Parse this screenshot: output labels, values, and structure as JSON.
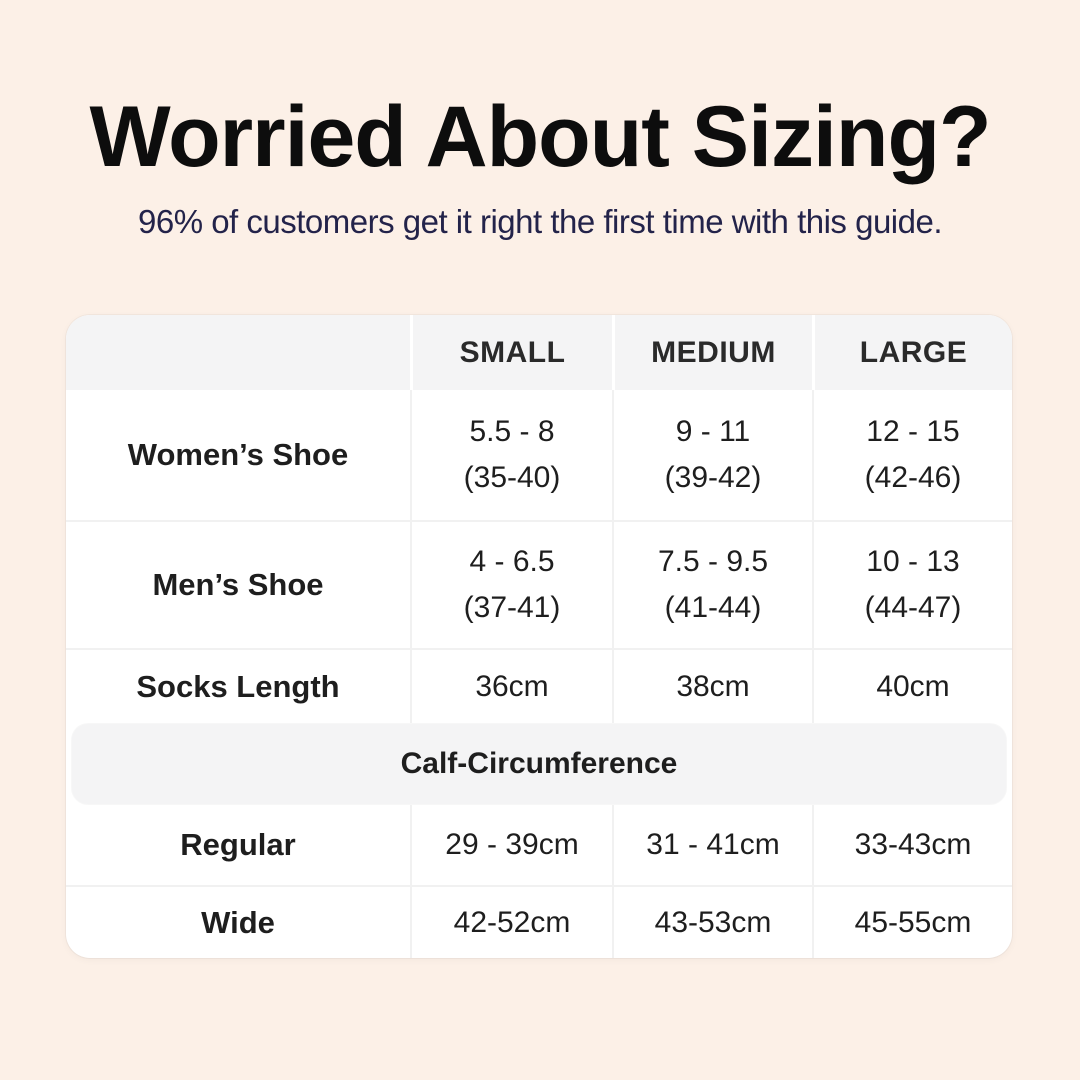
{
  "page": {
    "title": "Worried About Sizing?",
    "subtitle": "96% of customers get it right the first time with this guide."
  },
  "colors": {
    "page_background": "#FCF0E7",
    "card_background": "#FFFFFF",
    "band_background": "#F4F4F5",
    "divider": "#F1F1F1",
    "title_text": "#0D0D0D",
    "subtitle_text": "#23234A",
    "table_text": "#1E1E1E"
  },
  "table": {
    "header": {
      "col0": "",
      "col1": "SMALL",
      "col2": "MEDIUM",
      "col3": "LARGE"
    },
    "rows": [
      {
        "label": "Women’s Shoe",
        "cells": [
          [
            "5.5 - 8",
            "(35-40)"
          ],
          [
            "9 - 11",
            "(39-42)"
          ],
          [
            "12 - 15",
            "(42-46)"
          ]
        ]
      },
      {
        "label": "Men’s Shoe",
        "cells": [
          [
            "4 - 6.5",
            "(37-41)"
          ],
          [
            "7.5 - 9.5",
            "(41-44)"
          ],
          [
            "10 - 13",
            "(44-47)"
          ]
        ]
      },
      {
        "label": "Socks Length",
        "cells": [
          [
            "36cm"
          ],
          [
            "38cm"
          ],
          [
            "40cm"
          ]
        ]
      }
    ],
    "section_header": "Calf-Circumference",
    "calf_rows": [
      {
        "label": "Regular",
        "cells": [
          [
            "29 - 39cm"
          ],
          [
            "31 - 41cm"
          ],
          [
            "33-43cm"
          ]
        ]
      },
      {
        "label": "Wide",
        "cells": [
          [
            "42-52cm"
          ],
          [
            "43-53cm"
          ],
          [
            "45-55cm"
          ]
        ]
      }
    ]
  },
  "chart_data": {
    "type": "table",
    "title": "Worried About Sizing?",
    "subtitle": "96% of customers get it right the first time with this guide.",
    "columns": [
      "",
      "SMALL",
      "MEDIUM",
      "LARGE"
    ],
    "rows": [
      [
        "Women’s Shoe",
        "5.5 - 8 (35-40)",
        "9 - 11 (39-42)",
        "12 - 15 (42-46)"
      ],
      [
        "Men’s Shoe",
        "4 - 6.5 (37-41)",
        "7.5 - 9.5 (41-44)",
        "10 - 13 (44-47)"
      ],
      [
        "Socks Length",
        "36cm",
        "38cm",
        "40cm"
      ],
      [
        "Calf-Circumference",
        "",
        "",
        ""
      ],
      [
        "Regular",
        "29 - 39cm",
        "31 - 41cm",
        "33-43cm"
      ],
      [
        "Wide",
        "42-52cm",
        "43-53cm",
        "45-55cm"
      ]
    ],
    "layout_hints": {
      "section_row_index": 3,
      "header_band": true,
      "grid": "light-gray-dividers"
    }
  }
}
